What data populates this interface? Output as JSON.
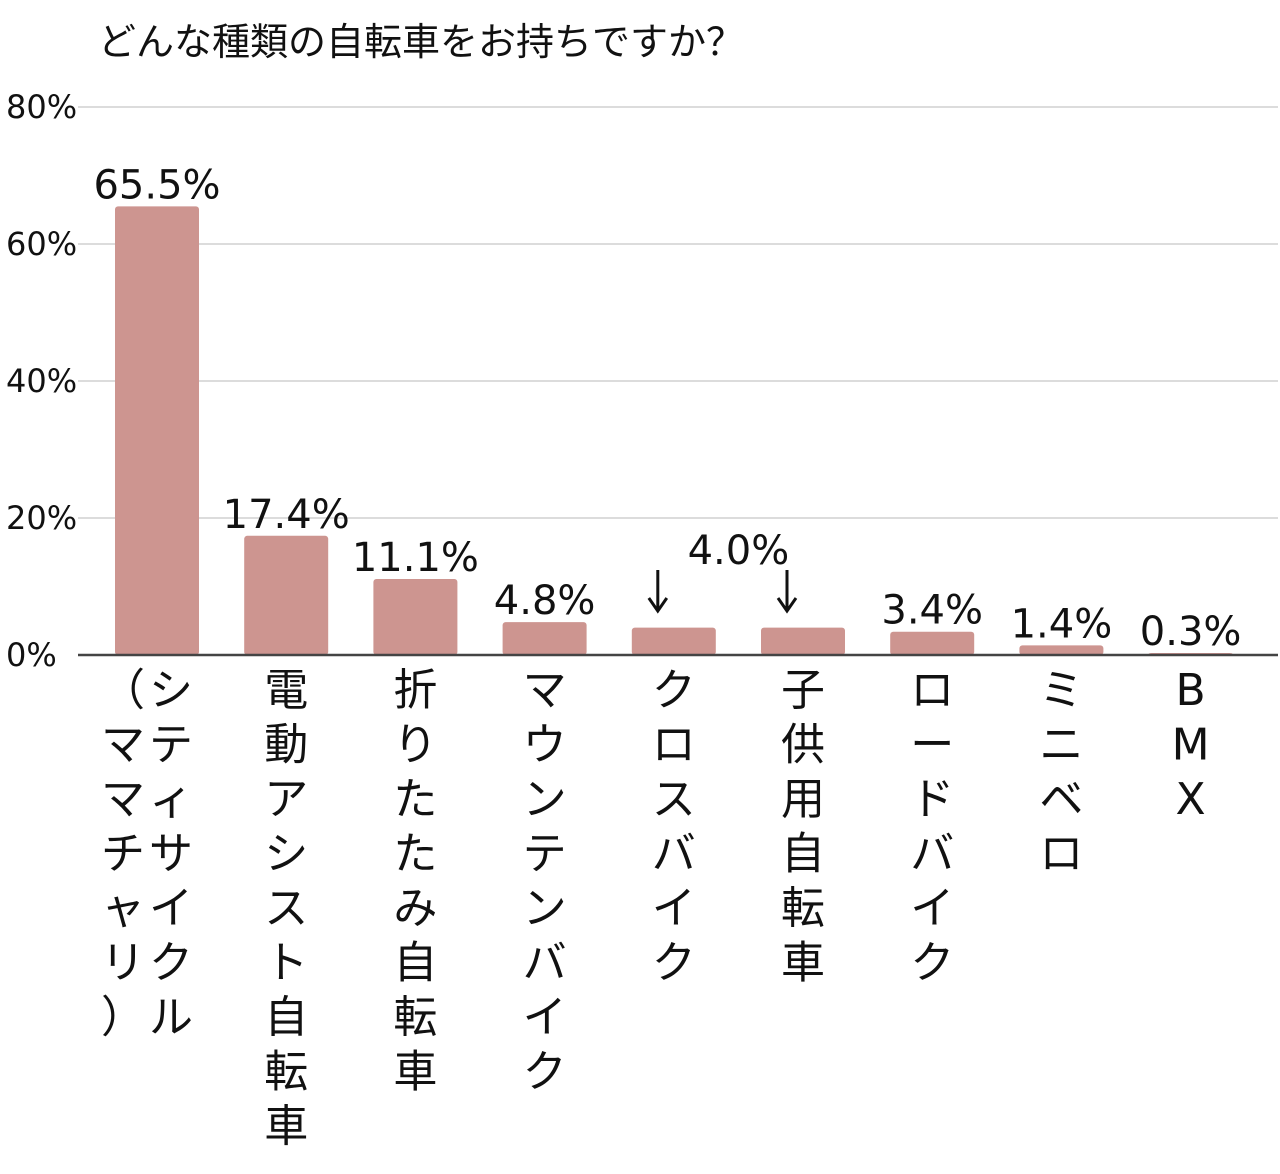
{
  "chart_data": {
    "type": "bar",
    "title": "どんな種類の自転車をお持ちですか？",
    "xlabel": "",
    "ylabel": "",
    "ylim": [
      0,
      80
    ],
    "yticks": [
      0,
      20,
      40,
      60,
      80
    ],
    "ytick_labels": [
      "0%",
      "20%",
      "40%",
      "60%",
      "80%"
    ],
    "grid": true,
    "legend": "none",
    "bar_color": "#cd9590",
    "categories": [
      "シティサイクル（ママチャリ）",
      "電動アシスト自転車",
      "折りたたみ自転車",
      "マウンテンバイク",
      "クロスバイク",
      "子供用自転車",
      "ロードバイク",
      "ミニベロ",
      "BMX"
    ],
    "category_columns": [
      [
        "シティサイクル",
        "（ママチャリ）"
      ],
      [
        "電動アシスト自転車"
      ],
      [
        "折りたたみ自転車"
      ],
      [
        "マウンテンバイク"
      ],
      [
        "クロスバイク"
      ],
      [
        "子供用自転車"
      ],
      [
        "ロードバイク"
      ],
      [
        "ミニベロ"
      ],
      [
        "BMX"
      ]
    ],
    "values": [
      65.5,
      17.4,
      11.1,
      4.8,
      4.0,
      4.0,
      3.4,
      1.4,
      0.3
    ],
    "data_labels": [
      "65.5%",
      "17.4%",
      "11.1%",
      "4.8%",
      "4.0%",
      "",
      "3.4%",
      "1.4%",
      "0.3%"
    ],
    "annotations": [
      {
        "text": "↓",
        "category_index": 4
      },
      {
        "text": "↓",
        "category_index": 5
      }
    ]
  }
}
